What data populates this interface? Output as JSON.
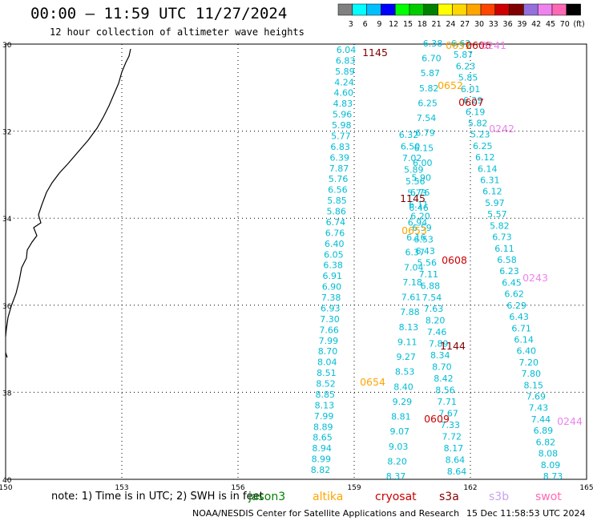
{
  "title": "00:00 – 11:59 UTC 11/27/2024",
  "subtitle": "12 hour collection of altimeter wave heights",
  "colorbar": {
    "labels": [
      "3",
      "6",
      "9",
      "12",
      "15",
      "18",
      "21",
      "24",
      "27",
      "30",
      "33",
      "36",
      "39",
      "42",
      "45",
      "70",
      "(ft)"
    ],
    "colors": [
      "#808080",
      "#00ffff",
      "#00bfff",
      "#0000ff",
      "#00ff00",
      "#00cc00",
      "#008000",
      "#ffff00",
      "#ffd700",
      "#ffa500",
      "#ff4500",
      "#cc0000",
      "#800000",
      "#9370db",
      "#ee82ee",
      "#ff69b4",
      "#000000"
    ]
  },
  "axes": {
    "lat_labels": [
      "30",
      "32",
      "34",
      "36",
      "38",
      "40"
    ],
    "lon_labels": [
      "150",
      "153",
      "156",
      "159",
      "162",
      "165"
    ]
  },
  "tracks": [
    {
      "name": "track-a",
      "color": "#00bcd4",
      "labels": [
        "6.04",
        "6.83",
        "5.89",
        "4.24",
        "4.60",
        "4.83",
        "5.96",
        "5.98",
        "5.77",
        "6.83",
        "6.39",
        "7.87",
        "5.76",
        "6.56",
        "5.85",
        "5.86",
        "6.74",
        "6.76",
        "6.40",
        "6.05",
        "6.38",
        "6.91",
        "6.90",
        "7.38",
        "6.93",
        "7.30",
        "7.66",
        "7.99",
        "8.70",
        "8.04",
        "8.51",
        "8.52",
        "8.85",
        "8.13",
        "7.99",
        "8.89",
        "8.65",
        "8.94",
        "8.99",
        "8.82"
      ]
    },
    {
      "name": "track-b",
      "color": "#00bcd4",
      "labels": [
        "6.32",
        "6.50",
        "7.02",
        "5.89",
        "5.56",
        "5.73",
        "6.11",
        "6.20",
        "6.59",
        "6.53",
        "6.43",
        "5.56",
        "7.11",
        "6.88",
        "7.54",
        "7.63",
        "8.20",
        "7.46",
        "7.89",
        "8.34",
        "8.70",
        "8.42",
        "8.56",
        "7.71",
        "7.67",
        "7.33",
        "7.72",
        "8.17",
        "8.64",
        "8.64"
      ]
    },
    {
      "name": "track-c",
      "color": "#00bcd4",
      "labels": [
        "6.38",
        "6.70",
        "5.87",
        "5.82",
        "6.25",
        "7.54",
        "6.79",
        "6.15",
        "6.00",
        "5.90",
        "6.76",
        "6.46",
        "6.94",
        "6.16",
        "6.37",
        "7.04",
        "7.18",
        "7.61",
        "7.88",
        "8.13",
        "9.11",
        "9.27",
        "8.53",
        "8.40",
        "9.29",
        "8.81",
        "9.07",
        "9.03",
        "8.20",
        "8.37"
      ]
    },
    {
      "name": "track-d",
      "color": "#00bcd4",
      "labels": [
        "6.63",
        "5.87",
        "6.23",
        "5.85",
        "6.01",
        "6.29",
        "6.19",
        "5.82",
        "5.23",
        "6.25",
        "6.12",
        "6.14",
        "6.31",
        "6.12",
        "5.97",
        "5.57",
        "5.82",
        "6.73",
        "6.11",
        "6.58",
        "6.23",
        "6.45",
        "6.62",
        "6.29",
        "6.43",
        "6.71",
        "6.14",
        "6.40",
        "7.20",
        "7.80",
        "8.15",
        "7.69",
        "7.43",
        "7.44",
        "6.89",
        "6.82",
        "8.08",
        "8.09",
        "8.73"
      ]
    }
  ],
  "pass_times": [
    {
      "text": "1145",
      "color": "#800000"
    },
    {
      "text": "0652",
      "color": "#ffa500"
    },
    {
      "text": "0607",
      "color": "#cc0000"
    },
    {
      "text": "0242",
      "color": "#ee82ee"
    },
    {
      "text": "1145",
      "color": "#800000"
    },
    {
      "text": "0653",
      "color": "#ffa500"
    },
    {
      "text": "0608",
      "color": "#cc0000"
    },
    {
      "text": "0243",
      "color": "#ee82ee"
    },
    {
      "text": "1144",
      "color": "#800000"
    },
    {
      "text": "0654",
      "color": "#ffa500"
    },
    {
      "text": "0609",
      "color": "#cc0000"
    },
    {
      "text": "0244",
      "color": "#ee82ee"
    },
    {
      "text": "0651",
      "color": "#ffa500"
    },
    {
      "text": "0606",
      "color": "#cc0000"
    },
    {
      "text": "0241",
      "color": "#ee82ee"
    }
  ],
  "footer": {
    "note": "note: 1) Time is in UTC; 2) SWH is in feet",
    "satellites": [
      {
        "name": "jason3",
        "color": "#008000"
      },
      {
        "name": "altika",
        "color": "#ffa500"
      },
      {
        "name": "cryosat",
        "color": "#cc0000"
      },
      {
        "name": "s3a",
        "color": "#800000"
      },
      {
        "name": "s3b",
        "color": "#c8a2f0"
      },
      {
        "name": "swot",
        "color": "#ff69b4"
      }
    ],
    "credit": "NOAA/NESDIS Center for Satellite Applications and Research",
    "timestamp": "15 Dec 11:58:53 UTC 2024"
  }
}
